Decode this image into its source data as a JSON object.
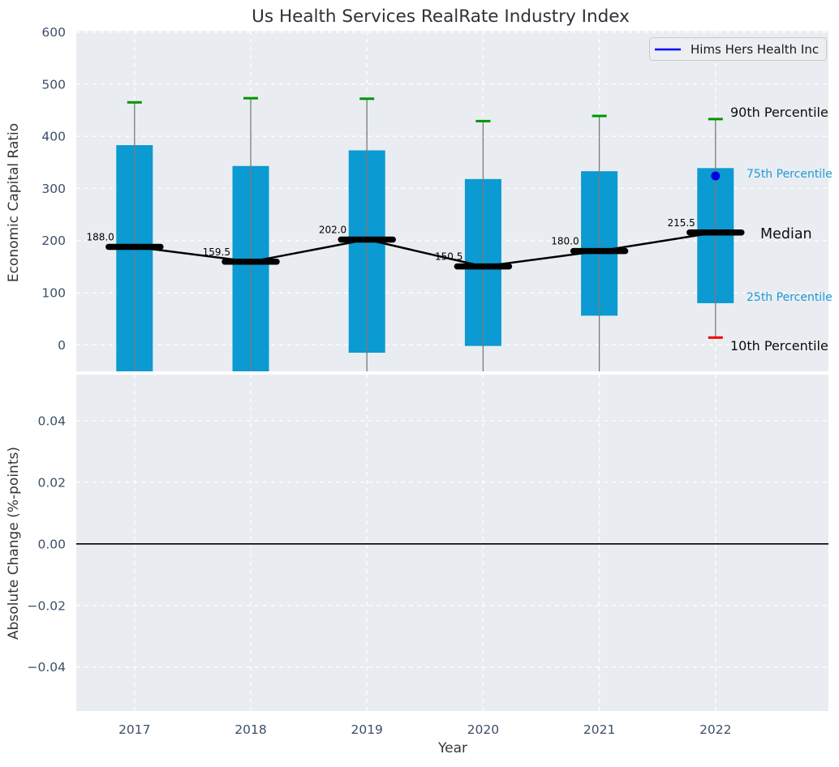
{
  "title": "Us Health Services RealRate Industry Index",
  "legend": {
    "label": "Hims Hers Health Inc"
  },
  "annotations": {
    "p90": "90th Percentile",
    "p75": "75th Percentile",
    "median": "Median",
    "p25": "25th Percentile",
    "p10": "10th Percentile"
  },
  "colors": {
    "bar": "#0b9ad1",
    "whisker": "#7a7a7a",
    "p90_cap": "#009400",
    "p10_cap": "#f10000",
    "median_line": "#000000",
    "company_line": "#0000f0",
    "company_point": "#0202dd",
    "axes_background": "#e9edf1",
    "grid": "#ffffff",
    "tick_label": "#3d5068",
    "percentile_label_accent": "#1d9ad6",
    "zero_line": "#000000"
  },
  "chart_data": [
    {
      "type": "bar",
      "subtype": "percentile-box-with-median-line",
      "title": "Us Health Services RealRate Industry Index",
      "xlabel": "Year",
      "ylabel": "Economic Capital Ratio",
      "categories": [
        "2017",
        "2018",
        "2019",
        "2020",
        "2021",
        "2022"
      ],
      "yticks": [
        0,
        100,
        200,
        300,
        400,
        500,
        600
      ],
      "ylim": [
        -52,
        602
      ],
      "grid": true,
      "legend_position": "upper right",
      "percentiles": {
        "p90": [
          465,
          473,
          472,
          429,
          439,
          433
        ],
        "p75": [
          383,
          343,
          373,
          318,
          333,
          339
        ],
        "median": [
          188.0,
          159.5,
          202.0,
          150.5,
          180.0,
          215.5
        ],
        "p25": [
          null,
          null,
          -15,
          -2,
          56,
          80
        ],
        "p10": [
          null,
          null,
          null,
          null,
          null,
          14
        ]
      },
      "median_labels": [
        "188.0",
        "159.5",
        "202.0",
        "150.5",
        "180.0",
        "215.5"
      ],
      "company_series": {
        "name": "Hims Hers Health Inc",
        "points": [
          {
            "x": "2022",
            "y": 324
          }
        ]
      }
    },
    {
      "type": "line",
      "xlabel": "Year",
      "ylabel": "Absolute Change (%-points)",
      "categories": [
        "2017",
        "2018",
        "2019",
        "2020",
        "2021",
        "2022"
      ],
      "yticks": [
        0.04,
        0.02,
        0.0,
        -0.02,
        -0.04
      ],
      "ytick_labels": [
        "0.04",
        "0.02",
        "0.00",
        "−0.02",
        "−0.04"
      ],
      "ylim": [
        -0.055,
        0.0555
      ],
      "zero_line": 0.0,
      "grid": true,
      "series": []
    }
  ]
}
